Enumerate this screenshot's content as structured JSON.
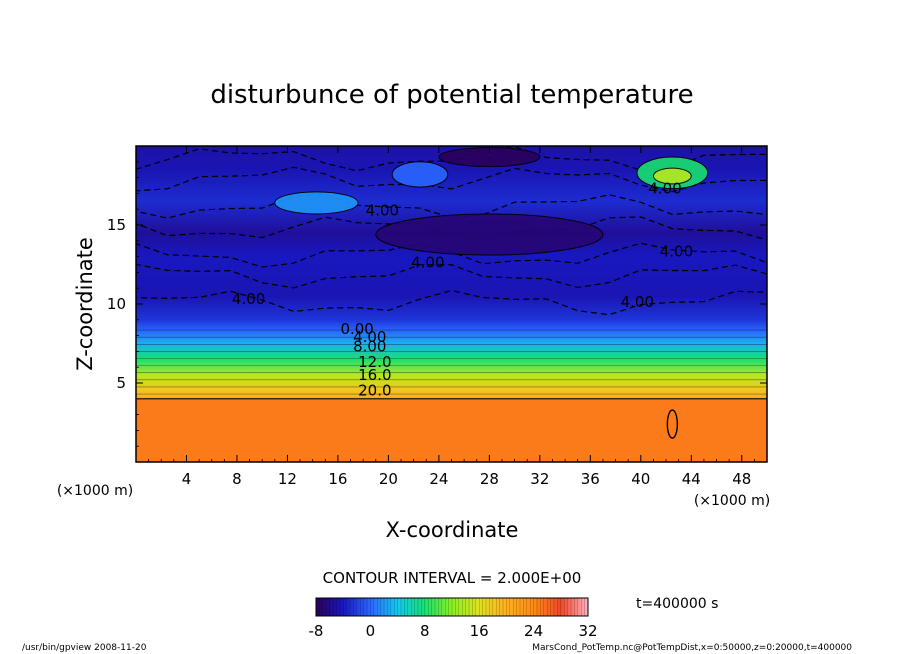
{
  "chart_data": {
    "type": "heatmap",
    "title": "disturbunce of potential temperature",
    "xlabel": "X-coordinate",
    "ylabel": "Z-coordinate",
    "x_unit": "(×1000 m)",
    "z_unit": "(×1000 m)",
    "xlim": [
      0,
      50
    ],
    "ylim": [
      0,
      20
    ],
    "x_ticks": [
      4,
      8,
      12,
      16,
      20,
      24,
      28,
      32,
      36,
      40,
      44,
      48
    ],
    "y_ticks": [
      5,
      10,
      15
    ],
    "contour_interval_text": "CONTOUR INTERVAL = 2.000E+00",
    "contour_labels": [
      "4.00",
      "4.00",
      "4.00",
      "4.00",
      "4.00",
      "4.00",
      "0.00",
      "4.00",
      "8.00",
      "12.0",
      "16.0",
      "20.0"
    ],
    "colorbar": {
      "min": -8,
      "max": 32,
      "ticks": [
        -8,
        0,
        8,
        16,
        24,
        32
      ]
    },
    "time_label": "t=400000 s",
    "field_profile": [
      {
        "z": 0,
        "value": 25
      },
      {
        "z": 3.9,
        "value": 25
      },
      {
        "z": 4.1,
        "value": 20
      },
      {
        "z": 4.6,
        "value": 18
      },
      {
        "z": 5.5,
        "value": 14
      },
      {
        "z": 6.5,
        "value": 8
      },
      {
        "z": 7.5,
        "value": 3
      },
      {
        "z": 8.3,
        "value": 0
      },
      {
        "z": 9,
        "value": -2.5
      },
      {
        "z": 10.5,
        "value": -4.5
      },
      {
        "z": 13,
        "value": -4
      },
      {
        "z": 14.5,
        "value": -5.5
      },
      {
        "z": 16.5,
        "value": -3
      },
      {
        "z": 18.5,
        "value": -4.5
      },
      {
        "z": 20,
        "value": -5
      }
    ],
    "grid": false
  },
  "footer": {
    "left": "/usr/bin/gpview  2008-11-20",
    "right": "MarsCond_PotTemp.nc@PotTempDist,x=0:50000,z=0:20000,t=400000"
  }
}
